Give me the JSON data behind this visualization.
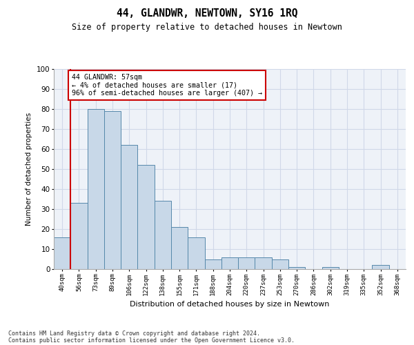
{
  "title": "44, GLANDWR, NEWTOWN, SY16 1RQ",
  "subtitle": "Size of property relative to detached houses in Newtown",
  "xlabel": "Distribution of detached houses by size in Newtown",
  "ylabel": "Number of detached properties",
  "categories": [
    "40sqm",
    "56sqm",
    "73sqm",
    "89sqm",
    "106sqm",
    "122sqm",
    "138sqm",
    "155sqm",
    "171sqm",
    "188sqm",
    "204sqm",
    "220sqm",
    "237sqm",
    "253sqm",
    "270sqm",
    "286sqm",
    "302sqm",
    "319sqm",
    "335sqm",
    "352sqm",
    "368sqm"
  ],
  "values": [
    16,
    33,
    80,
    79,
    62,
    52,
    34,
    21,
    16,
    5,
    6,
    6,
    6,
    5,
    1,
    0,
    1,
    0,
    0,
    2,
    0
  ],
  "bar_color": "#c8d8e8",
  "bar_edge_color": "#5588aa",
  "highlight_color": "#cc0000",
  "annotation_text": "44 GLANDWR: 57sqm\n← 4% of detached houses are smaller (17)\n96% of semi-detached houses are larger (407) →",
  "annotation_box_color": "#ffffff",
  "annotation_box_edge_color": "#cc0000",
  "ylim": [
    0,
    100
  ],
  "yticks": [
    0,
    10,
    20,
    30,
    40,
    50,
    60,
    70,
    80,
    90,
    100
  ],
  "footer_line1": "Contains HM Land Registry data © Crown copyright and database right 2024.",
  "footer_line2": "Contains public sector information licensed under the Open Government Licence v3.0.",
  "grid_color": "#d0d8e8",
  "bg_color": "#eef2f8"
}
